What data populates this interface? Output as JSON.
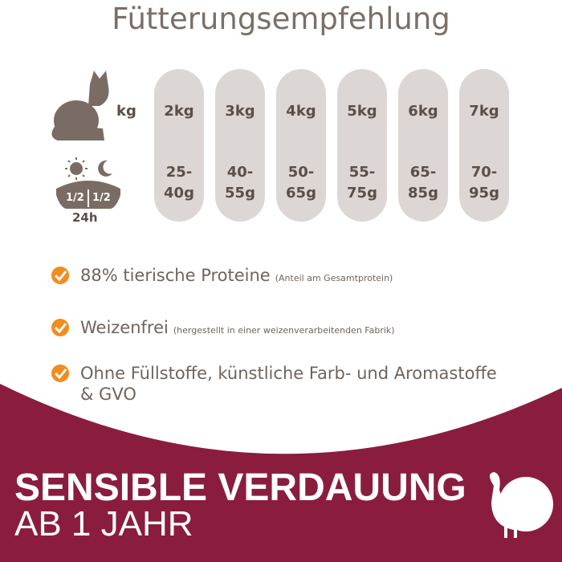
{
  "header": {
    "title": "Fütterungsempfehlung"
  },
  "table": {
    "unit_label": "kg",
    "columns": [
      {
        "weight": "2kg",
        "amount": [
          "25-",
          "40g"
        ]
      },
      {
        "weight": "3kg",
        "amount": [
          "40-",
          "55g"
        ]
      },
      {
        "weight": "4kg",
        "amount": [
          "50-",
          "65g"
        ]
      },
      {
        "weight": "5kg",
        "amount": [
          "55-",
          "75g"
        ]
      },
      {
        "weight": "6kg",
        "amount": [
          "65-",
          "85g"
        ]
      },
      {
        "weight": "7kg",
        "amount": [
          "70-",
          "95g"
        ]
      }
    ],
    "bowl": {
      "left": "1/2",
      "right": "1/2",
      "period": "24h"
    }
  },
  "benefits": [
    {
      "lines": [
        "88% tierische Proteine"
      ],
      "note": "(Anteil am Gesamtprotein)"
    },
    {
      "lines": [
        "Weizenfrei"
      ],
      "note": "(hergestellt in einer weizenverarbeitenden Fabrik)"
    },
    {
      "lines": [
        "Ohne Füllstoffe, künstliche Farb- und Aromastoffe",
        "& GVO"
      ]
    }
  ],
  "banner": {
    "line1": "SENSIBLE VERDAUUNG",
    "line2": "AB 1 JAHR"
  }
}
